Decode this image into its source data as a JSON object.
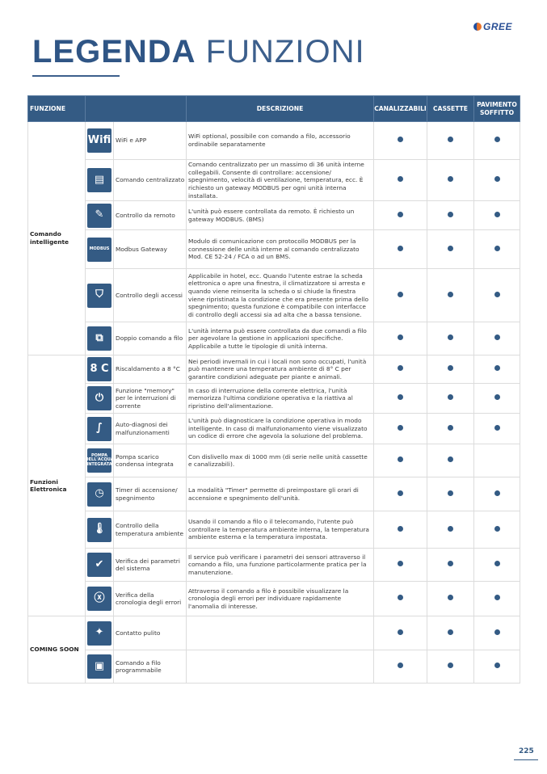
{
  "brand": {
    "logo_text": "GREE"
  },
  "title": {
    "bold": "LEGENDA",
    "light": "FUNZIONI"
  },
  "table": {
    "headers": {
      "funzione": "FUNZIONE",
      "descrizione": "DESCRIZIONE",
      "canalizzabili": "CANALIZZABILI",
      "cassette": "CASSETTE",
      "pavimento_soffitto": "PAVIMENTO SOFFITTO"
    },
    "groups": [
      {
        "label": "Comando intelligente",
        "rows": [
          {
            "icon": "wifi-icon",
            "icon_text": "Wifi",
            "name": "WiFi e APP",
            "desc": "WiFi optional, possibile con comando a filo, accessorio ordinabile separatamente",
            "canalizzabili": true,
            "cassette": true,
            "pavimento_soffitto": true
          },
          {
            "icon": "central-control-icon",
            "icon_text": "",
            "name": "Comando centralizzato",
            "desc": "Comando centralizzato per un massimo di 36 unità interne collegabili. Consente di controllare: accensione/ spegnimento, velocità di ventilazione, temperatura, ecc. È richiesto un gateway MODBUS per ogni unità interna installata.",
            "canalizzabili": true,
            "cassette": true,
            "pavimento_soffitto": true
          },
          {
            "icon": "remote-control-icon",
            "icon_text": "",
            "name": "Controllo da remoto",
            "desc": "L'unità può essere controllata da remoto. È richiesto un gateway MODBUS. (BMS)",
            "canalizzabili": true,
            "cassette": true,
            "pavimento_soffitto": true
          },
          {
            "icon": "modbus-icon",
            "icon_text": "MODBUS",
            "name": "Modbus Gateway",
            "desc": "Modulo di comunicazione con protocollo MODBUS per la connessione delle unità interne al comando centralizzato Mod. CE 52-24 / FCA o ad un BMS.",
            "canalizzabili": true,
            "cassette": true,
            "pavimento_soffitto": true
          },
          {
            "icon": "access-shield-icon",
            "icon_text": "",
            "name": "Controllo degli accessi",
            "desc": "Applicabile in hotel, ecc. Quando l'utente estrae la scheda elettronica o apre una finestra, il climatizzatore si arresta e quando viene reinserita la scheda o si chiude la finestra viene ripristinata la condizione che era presente prima dello spegnimento; questa funzione è compatibile con interfacce di controllo degli accessi sia ad alta che a bassa tensione.",
            "canalizzabili": true,
            "cassette": true,
            "pavimento_soffitto": true
          },
          {
            "icon": "dual-wired-control-icon",
            "icon_text": "",
            "name": "Doppio comando a filo",
            "desc": "L'unità interna può essere controllata da due comandi a filo per agevolare la gestione in applicazioni specifiche. Applicabile a tutte le tipologie di unità interna.",
            "canalizzabili": true,
            "cassette": true,
            "pavimento_soffitto": true
          }
        ]
      },
      {
        "label": "Funzioni Elettronica",
        "rows": [
          {
            "icon": "heating-8c-icon",
            "icon_text": "8 C",
            "name": "Riscaldamento a 8 °C",
            "desc": "Nei periodi invernali in cui i locali non sono occupati, l'unità può mantenere una temperatura ambiente di 8° C per garantire condizioni adeguate per piante e animali.",
            "canalizzabili": true,
            "cassette": true,
            "pavimento_soffitto": true
          },
          {
            "icon": "memory-plug-icon",
            "icon_text": "",
            "name": "Funzione \"memory\" per le interruzioni di corrente",
            "desc": "In caso di interruzione della corrente elettrica, l'unità memorizza l'ultima condizione operativa e la riattiva al ripristino dell'alimentazione.",
            "canalizzabili": true,
            "cassette": true,
            "pavimento_soffitto": true
          },
          {
            "icon": "stethoscope-icon",
            "icon_text": "",
            "name": "Auto-diagnosi dei malfunzionamenti",
            "desc": "L'unità può diagnosticare la condizione operativa in modo intelligente. In caso di malfunzionamento viene visualizzato un codice di errore che agevola la soluzione del problema.",
            "canalizzabili": true,
            "cassette": true,
            "pavimento_soffitto": true
          },
          {
            "icon": "condensate-pump-icon",
            "icon_text": "POMPA DELL'ACQUA INTEGRATA",
            "name": "Pompa scarico condensa integrata",
            "desc": "Con dislivello max di 1000 mm (di serie nelle unità cassette e canalizzabili).",
            "canalizzabili": true,
            "cassette": true,
            "pavimento_soffitto": false
          },
          {
            "icon": "timer-icon",
            "icon_text": "",
            "name": "Timer di accensione/ spegnimento",
            "desc": "La modalità \"Timer\" permette di preimpostare gli orari di accensione e spegnimento dell'unità.",
            "canalizzabili": true,
            "cassette": true,
            "pavimento_soffitto": true
          },
          {
            "icon": "thermometer-icon",
            "icon_text": "",
            "name": "Controllo della temperatura ambiente",
            "desc": "Usando il comando a filo o il telecomando, l'utente può controllare la temperatura ambiente interna, la temperatura ambiente esterna e la temperatura impostata.",
            "canalizzabili": true,
            "cassette": true,
            "pavimento_soffitto": true
          },
          {
            "icon": "shield-check-icon",
            "icon_text": "",
            "name": "Verifica dei parametri del sistema",
            "desc": "Il service può verificare i parametri dei sensori attraverso il comando a filo, una funzione particolarmente pratica per la manutenzione.",
            "canalizzabili": true,
            "cassette": true,
            "pavimento_soffitto": true
          },
          {
            "icon": "error-x-icon",
            "icon_text": "",
            "name": "Verifica della cronologia degli errori",
            "desc": "Attraverso il comando a filo è possibile visualizzare la cronologia degli errori per individuare rapidamente l'anomalia di interesse.",
            "canalizzabili": true,
            "cassette": true,
            "pavimento_soffitto": true
          }
        ]
      },
      {
        "label": "COMING SOON",
        "rows": [
          {
            "icon": "sparkle-clean-icon",
            "icon_text": "",
            "name": "Contatto pulito",
            "desc": "",
            "canalizzabili": true,
            "cassette": true,
            "pavimento_soffitto": true
          },
          {
            "icon": "programmable-wired-control-icon",
            "icon_text": "",
            "name": "Comando a filo programmabile",
            "desc": "",
            "canalizzabili": true,
            "cassette": true,
            "pavimento_soffitto": true
          }
        ]
      }
    ]
  },
  "page_number": "225",
  "colors": {
    "primary": "#345b84",
    "logo_orange": "#e8732a"
  }
}
